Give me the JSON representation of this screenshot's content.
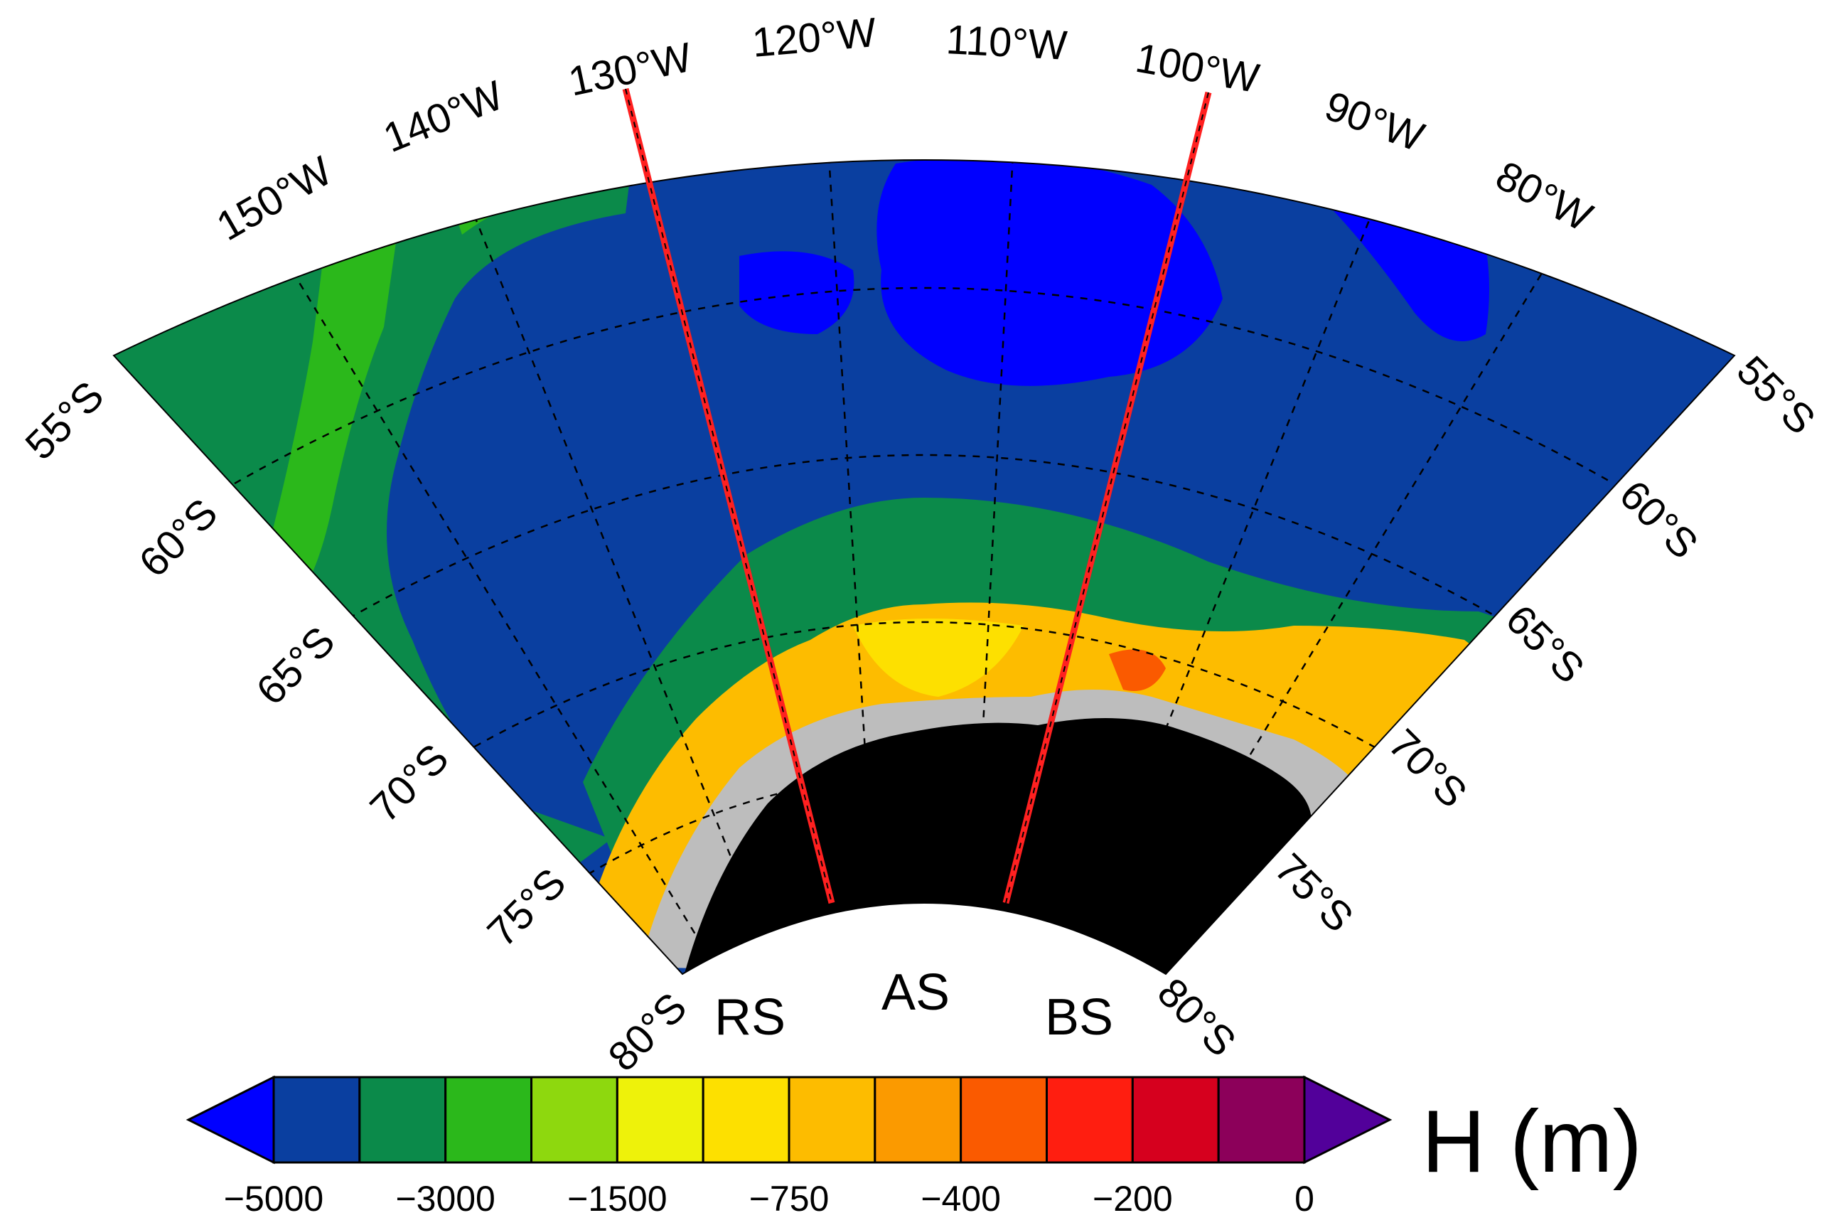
{
  "map": {
    "projection": "polar sector",
    "lon_labels": [
      "150°W",
      "140°W",
      "130°W",
      "120°W",
      "110°W",
      "100°W",
      "90°W",
      "80°W"
    ],
    "lat_labels_left": [
      "55°S",
      "60°S",
      "65°S",
      "70°S",
      "75°S",
      "80°S"
    ],
    "lat_labels_right": [
      "55°S",
      "60°S",
      "65°S",
      "70°S",
      "75°S",
      "80°S"
    ],
    "region_labels": {
      "rs": "RS",
      "as": "AS",
      "bs": "BS"
    },
    "section_lines": {
      "color": "#ff2020",
      "longitudes_deg_w": [
        130,
        100
      ]
    },
    "land_color": "#000000",
    "ice_shelf_color": "#bdbdbd"
  },
  "colorbar": {
    "title": "H (m)",
    "tick_labels": [
      "−5000",
      "−3000",
      "−1500",
      "−750",
      "−400",
      "−200",
      "0"
    ],
    "colors": [
      "#0000ff",
      "#0a3fa0",
      "#0b8a4a",
      "#2bb81b",
      "#8ed80e",
      "#eef20a",
      "#fde000",
      "#fdbc00",
      "#fb9a00",
      "#fa5a00",
      "#ff1e10",
      "#d6001e",
      "#8c005a",
      "#52009a"
    ]
  }
}
